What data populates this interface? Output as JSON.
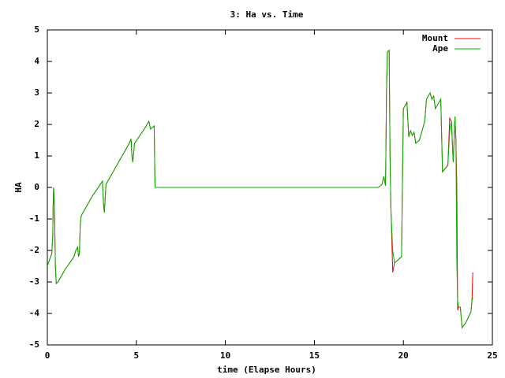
{
  "chart_data": {
    "type": "line",
    "title": "3: Ha vs. Time",
    "x_label": "time (Elapse Hours)",
    "y_label": "HA",
    "xlim": [
      0,
      25
    ],
    "xticks": [
      0,
      5,
      10,
      15,
      20,
      25
    ],
    "ylim": [
      -5,
      5
    ],
    "yticks": [
      -5,
      -4,
      -3,
      -2,
      -1,
      0,
      1,
      2,
      3,
      4,
      5
    ],
    "legend": "top-right",
    "series": [
      {
        "name": "Mount",
        "color": "#ff0000",
        "x": [
          0,
          0.25,
          0.3,
          0.33,
          0.35,
          0.4,
          0.45,
          0.5,
          0.6,
          1,
          1.5,
          1.6,
          1.7,
          1.75,
          1.8,
          1.85,
          1.9,
          2.5,
          3.1,
          3.15,
          3.2,
          3.3,
          4,
          4.6,
          4.7,
          4.75,
          4.8,
          4.9,
          5.5,
          5.7,
          5.8,
          6,
          6.05,
          18.6,
          18.8,
          18.9,
          19.0,
          19.05,
          19.1,
          19.2,
          19.25,
          19.3,
          19.4,
          19.5,
          19.7,
          19.9,
          20,
          20.2,
          20.3,
          20.4,
          20.5,
          20.6,
          20.7,
          20.9,
          21.2,
          21.3,
          21.5,
          21.6,
          21.7,
          21.8,
          22.0,
          22.1,
          22.2,
          22.5,
          22.6,
          22.7,
          22.8,
          22.9,
          22.95,
          23.0,
          23.05,
          23.1,
          23.2,
          23.3,
          23.5,
          23.8,
          23.85,
          23.9
        ],
        "values": [
          -2.5,
          -2.1,
          -1.6,
          -0.5,
          0,
          -0.6,
          -2.5,
          -3.05,
          -3.0,
          -2.6,
          -2.2,
          -2.0,
          -1.9,
          -2.2,
          -2.1,
          -1.2,
          -0.9,
          -0.3,
          0.2,
          -0.5,
          -0.8,
          0.1,
          0.8,
          1.4,
          1.55,
          1.0,
          0.8,
          1.4,
          1.9,
          2.1,
          1.85,
          1.95,
          0,
          0,
          0.1,
          0.35,
          0.05,
          3.0,
          4.3,
          4.35,
          1.0,
          -0.6,
          -2.7,
          -2.4,
          -2.3,
          -2.2,
          2.5,
          2.7,
          1.6,
          1.8,
          1.65,
          1.75,
          1.4,
          1.5,
          2.1,
          2.8,
          3.0,
          2.8,
          2.9,
          2.5,
          2.7,
          2.8,
          0.5,
          0.7,
          2.2,
          2.1,
          0.8,
          2.25,
          1.5,
          0.1,
          -3.9,
          -3.8,
          -3.8,
          -4.45,
          -4.3,
          -3.95,
          -3.6,
          -2.7
        ]
      },
      {
        "name": "Ape",
        "color": "#00b000",
        "x": [
          0,
          0.25,
          0.3,
          0.33,
          0.35,
          0.4,
          0.45,
          0.5,
          0.6,
          1,
          1.5,
          1.6,
          1.7,
          1.75,
          1.8,
          1.85,
          1.9,
          2.5,
          3.1,
          3.15,
          3.2,
          3.3,
          4,
          4.6,
          4.7,
          4.75,
          4.8,
          4.9,
          5.5,
          5.7,
          5.8,
          6,
          6.05,
          18.6,
          18.8,
          18.9,
          19.0,
          19.05,
          19.1,
          19.2,
          19.25,
          19.3,
          19.4,
          19.5,
          19.7,
          19.9,
          20,
          20.2,
          20.3,
          20.4,
          20.5,
          20.6,
          20.7,
          20.9,
          21.2,
          21.3,
          21.5,
          21.6,
          21.7,
          21.8,
          22.0,
          22.1,
          22.2,
          22.5,
          22.6,
          22.7,
          22.8,
          22.9,
          22.95,
          23.0,
          23.05,
          23.1,
          23.2,
          23.3,
          23.5,
          23.8,
          23.85,
          23.9
        ],
        "values": [
          -2.5,
          -2.1,
          -1.6,
          -0.5,
          0,
          -0.6,
          -2.5,
          -3.05,
          -3.0,
          -2.6,
          -2.2,
          -2.0,
          -1.9,
          -2.2,
          -2.1,
          -1.2,
          -0.9,
          -0.3,
          0.2,
          -0.5,
          -0.8,
          0.1,
          0.8,
          1.4,
          1.55,
          1.0,
          0.8,
          1.4,
          1.9,
          2.1,
          1.85,
          1.95,
          0,
          0,
          0.1,
          0.35,
          0.05,
          3.0,
          4.3,
          4.35,
          1.0,
          -0.7,
          -2.0,
          -2.4,
          -2.3,
          -2.2,
          2.5,
          2.7,
          1.6,
          1.8,
          1.65,
          1.75,
          1.4,
          1.5,
          2.1,
          2.8,
          3.0,
          2.8,
          2.9,
          2.5,
          2.7,
          2.8,
          0.5,
          0.7,
          1.8,
          2.1,
          0.8,
          2.25,
          1.5,
          -2.3,
          -3.6,
          -3.8,
          -3.8,
          -4.45,
          -4.3,
          -3.95,
          -3.6,
          -3.5
        ]
      }
    ]
  }
}
